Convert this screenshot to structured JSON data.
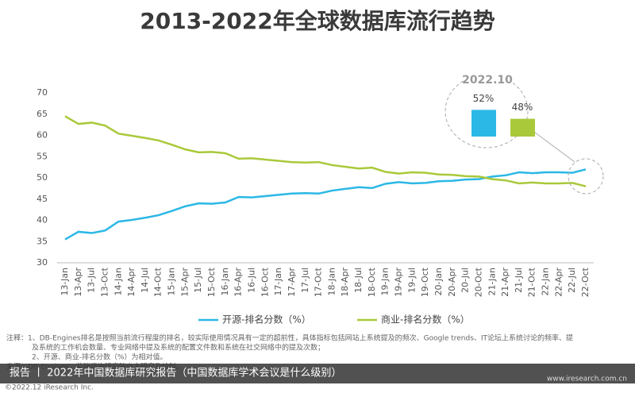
{
  "chart_data": {
    "type": "line",
    "title": "2013-2022年全球数据库流行趋势",
    "categories": [
      "13-Jan",
      "13-Apr",
      "13-Jul",
      "13-Oct",
      "14-Jan",
      "14-Apr",
      "14-Jul",
      "14-Oct",
      "15-Jan",
      "15-Apr",
      "15-Jul",
      "15-Oct",
      "16-Jan",
      "16-Apr",
      "16-Jul",
      "16-Oct",
      "17-Jan",
      "17-Apr",
      "17-Jul",
      "17-Oct",
      "18-Jan",
      "18-Apr",
      "18-Jul",
      "18-Oct",
      "19-Jan",
      "19-Apr",
      "19-Jul",
      "19-Oct",
      "20-Jan",
      "20-Apr",
      "20-Jul",
      "20-Oct",
      "21-Jan",
      "21-Apr",
      "21-Jul",
      "21-Oct",
      "22-Jan",
      "22-Apr",
      "22-Jul",
      "22-Oct"
    ],
    "series": [
      {
        "name": "开源-排名分数（%）",
        "color": "#2bb8e6",
        "values": [
          35.5,
          37.3,
          37.0,
          37.6,
          39.7,
          40.1,
          40.6,
          41.2,
          42.2,
          43.3,
          44.0,
          43.9,
          44.2,
          45.5,
          45.4,
          45.7,
          46.0,
          46.3,
          46.4,
          46.3,
          47.0,
          47.4,
          47.8,
          47.6,
          48.6,
          49.0,
          48.7,
          48.8,
          49.2,
          49.3,
          49.6,
          49.7,
          50.3,
          50.6,
          51.3,
          51.1,
          51.3,
          51.3,
          51.2,
          52.0
        ]
      },
      {
        "name": "商业-排名分数（%）",
        "color": "#a9c93a",
        "values": [
          64.5,
          62.7,
          63.0,
          62.3,
          60.4,
          59.9,
          59.4,
          58.8,
          57.8,
          56.7,
          56.0,
          56.1,
          55.8,
          54.5,
          54.6,
          54.3,
          54.0,
          53.7,
          53.6,
          53.7,
          53.0,
          52.6,
          52.2,
          52.4,
          51.4,
          51.0,
          51.3,
          51.2,
          50.8,
          50.7,
          50.4,
          50.3,
          49.7,
          49.4,
          48.7,
          48.9,
          48.7,
          48.7,
          48.8,
          48.0
        ]
      }
    ],
    "ylim": [
      30,
      70
    ],
    "yticks": [
      30,
      35,
      40,
      45,
      50,
      55,
      60,
      65,
      70
    ],
    "grid": false,
    "annotation": {
      "title": "2022.10",
      "values": [
        52,
        48
      ],
      "value_labels": [
        "52%",
        "48%"
      ]
    },
    "notes": [
      "注释：1、DB-Engines排名是按照当前流行程度的排名，较实际使用情况具有一定的超前性，具体指标包括网站上系统提及的频次、Google trends、IT论坛上系统讨论的频率、提",
      "及系统的工作机会数量、专业网络中提及系统的配置文件数和系统在社交网络中的提及次数；",
      "2、开源、商业-排名分数（%）为相对值。"
    ],
    "source": "来源：DB-Engines，艾瑞咨询研究院自主研究及绘制。",
    "copyright": "©2022.12 iResearch Inc.",
    "footer": {
      "title": "报告 丨 2022年中国数据库研究报告（中国数据库学术会议是什么级别）",
      "url": "www.iresearch.com.cn"
    }
  }
}
